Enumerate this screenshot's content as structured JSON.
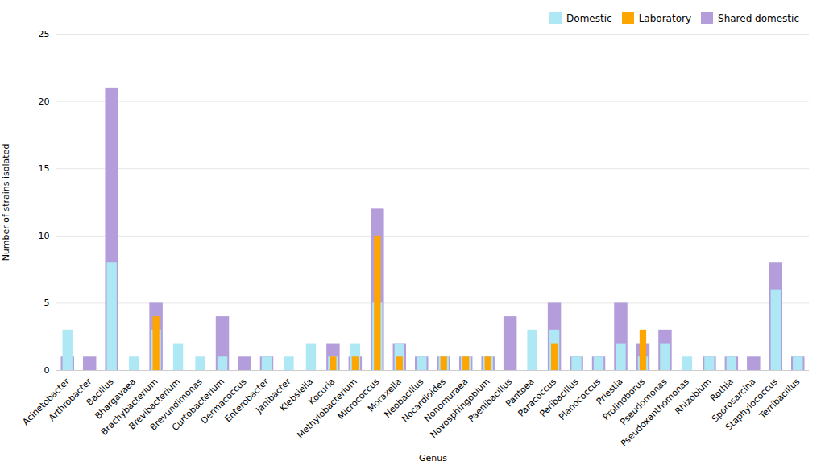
{
  "chart_data": {
    "type": "bar",
    "xlabel": "Genus",
    "ylabel": "Number of strains isolated",
    "categories": [
      "Acinetobacter",
      "Arthrobacter",
      "Bacillus",
      "Bhargavaea",
      "Brachybacterium",
      "Brevibacterium",
      "Brevundimonas",
      "Curtobacterium",
      "Dermacoccus",
      "Enterobacter",
      "Janibacter",
      "Klebsiella",
      "Kocuria",
      "Methylobacterium",
      "Micrococcus",
      "Moraxella",
      "Neobacillus",
      "Nocardioides",
      "Nonomuraea",
      "Novosphingobium",
      "Paenibacillus",
      "Pantoea",
      "Paracoccus",
      "Peribacillus",
      "Planococcus",
      "Priestia",
      "Prolinoborus",
      "Pseudomonas",
      "Pseudoxanthomonas",
      "Rhizobium",
      "Rothia",
      "Sporosarcina",
      "Staphylococcus",
      "Terribacillus"
    ],
    "series": [
      {
        "name": "Domestic",
        "color": "#ADE8F4",
        "values": [
          3,
          0,
          8,
          1,
          3,
          2,
          1,
          1,
          0,
          1,
          1,
          2,
          1,
          2,
          5,
          2,
          1,
          1,
          1,
          1,
          0,
          3,
          3,
          1,
          1,
          2,
          1,
          2,
          1,
          1,
          1,
          0,
          6,
          1
        ]
      },
      {
        "name": "Laboratory",
        "color": "#FFA500",
        "values": [
          0,
          0,
          0,
          0,
          4,
          0,
          0,
          0,
          0,
          0,
          0,
          0,
          1,
          1,
          10,
          1,
          0,
          1,
          1,
          1,
          0,
          0,
          2,
          0,
          0,
          0,
          3,
          0,
          0,
          0,
          0,
          0,
          0,
          0
        ]
      },
      {
        "name": "Shared domestic",
        "color": "#B39DDB",
        "values": [
          1,
          1,
          21,
          0,
          5,
          0,
          0,
          4,
          1,
          1,
          0,
          0,
          2,
          1,
          12,
          2,
          1,
          1,
          1,
          1,
          4,
          0,
          5,
          1,
          1,
          5,
          2,
          3,
          0,
          1,
          1,
          1,
          8,
          1
        ]
      }
    ],
    "ylim": [
      0,
      25
    ],
    "yticks": [
      0,
      5,
      10,
      15,
      20,
      25
    ],
    "grid": true,
    "legend": "upper right"
  }
}
